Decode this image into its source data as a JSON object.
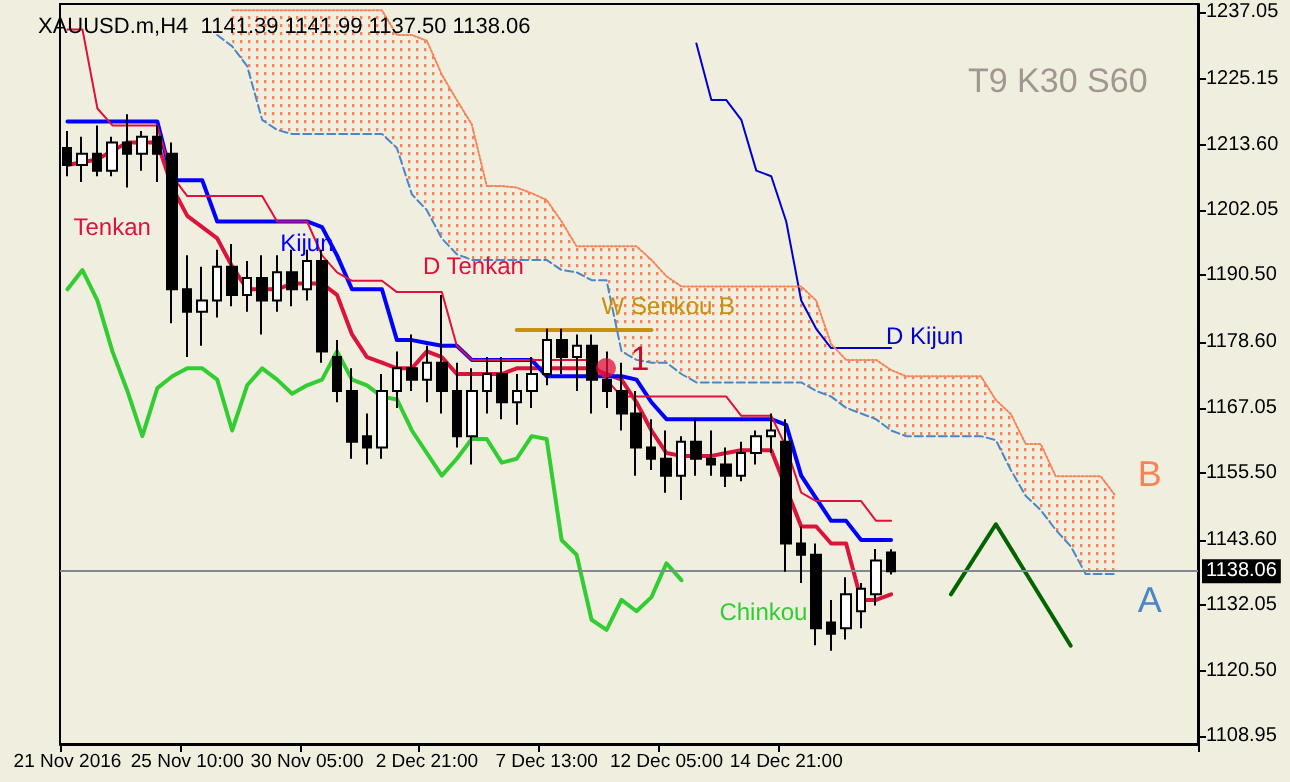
{
  "chart_data": {
    "type": "candlestick",
    "title": "XAUUSD.m,H4  1141.39 1141.99 1137.50 1138.06",
    "categories": [
      "21 Nov 2016",
      null,
      null,
      null,
      null,
      null,
      null,
      null,
      "25 Nov 10:00",
      null,
      null,
      null,
      null,
      null,
      null,
      null,
      "30 Nov 05:00",
      null,
      null,
      null,
      null,
      null,
      null,
      null,
      "2 Dec 21:00",
      null,
      null,
      null,
      null,
      null,
      null,
      null,
      "7 Dec 13:00",
      null,
      null,
      null,
      null,
      null,
      null,
      null,
      "12 Dec 05:00",
      null,
      null,
      null,
      null,
      null,
      null,
      null,
      "14 Dec 21:00",
      null,
      null,
      null,
      null,
      null,
      null,
      null,
      null,
      null,
      null,
      null,
      null,
      null,
      null,
      null,
      null,
      null,
      null,
      null,
      null,
      null,
      null,
      null,
      null,
      null,
      null,
      null
    ],
    "ohlc": [
      [
        1213,
        1216,
        1208,
        1210
      ],
      [
        1210,
        1215,
        1207,
        1212
      ],
      [
        1212,
        1217,
        1208,
        1209
      ],
      [
        1209,
        1215,
        1208,
        1214
      ],
      [
        1214,
        1219,
        1206,
        1212
      ],
      [
        1212,
        1216,
        1209,
        1215
      ],
      [
        1215,
        1217,
        1207,
        1212
      ],
      [
        1212,
        1214,
        1182,
        1188
      ],
      [
        1188,
        1194,
        1176,
        1184
      ],
      [
        1184,
        1192,
        1178,
        1186
      ],
      [
        1186,
        1195,
        1183,
        1192
      ],
      [
        1192,
        1196,
        1185,
        1187
      ],
      [
        1187,
        1193,
        1184,
        1190
      ],
      [
        1190,
        1194,
        1180,
        1186
      ],
      [
        1186,
        1194,
        1184,
        1191
      ],
      [
        1191,
        1195,
        1185,
        1188
      ],
      [
        1188,
        1195,
        1186,
        1193
      ],
      [
        1193,
        1195,
        1175,
        1177
      ],
      [
        1176,
        1179,
        1168,
        1170
      ],
      [
        1170,
        1174,
        1158,
        1161
      ],
      [
        1162,
        1166,
        1157,
        1160
      ],
      [
        1160,
        1173,
        1158,
        1170
      ],
      [
        1170,
        1177,
        1167,
        1174
      ],
      [
        1174,
        1180,
        1170,
        1172
      ],
      [
        1172,
        1178,
        1168,
        1175
      ],
      [
        1175,
        1187,
        1166,
        1170
      ],
      [
        1170,
        1175,
        1160,
        1162
      ],
      [
        1162,
        1174,
        1157,
        1170
      ],
      [
        1170,
        1176,
        1166,
        1173
      ],
      [
        1173,
        1176,
        1165,
        1168
      ],
      [
        1168,
        1173,
        1164,
        1170
      ],
      [
        1170,
        1176,
        1167,
        1173
      ],
      [
        1173,
        1181,
        1171,
        1179
      ],
      [
        1179,
        1181,
        1173,
        1176
      ],
      [
        1176,
        1180,
        1170,
        1178
      ],
      [
        1178,
        1180,
        1166,
        1172
      ],
      [
        1172,
        1177,
        1167,
        1170
      ],
      [
        1170,
        1175,
        1163,
        1166
      ],
      [
        1166,
        1170,
        1155,
        1160
      ],
      [
        1160,
        1165,
        1156,
        1158
      ],
      [
        1158,
        1163,
        1152,
        1155
      ],
      [
        1155,
        1162,
        1150.7,
        1161
      ],
      [
        1161,
        1165,
        1155,
        1158
      ],
      [
        1158,
        1163,
        1155,
        1157
      ],
      [
        1157,
        1160,
        1153,
        1155
      ],
      [
        1155,
        1161,
        1154,
        1159
      ],
      [
        1159,
        1163,
        1157,
        1162
      ],
      [
        1162,
        1166,
        1159,
        1163
      ],
      [
        1161,
        1165,
        1138,
        1143
      ],
      [
        1143,
        1146,
        1136,
        1141
      ],
      [
        1141,
        1143,
        1125,
        1128
      ],
      [
        1129,
        1133,
        1124,
        1127
      ],
      [
        1128,
        1137,
        1126,
        1134
      ],
      [
        1131,
        1136,
        1128,
        1135
      ],
      [
        1134,
        1142,
        1132,
        1140
      ],
      [
        1141.39,
        1141.99,
        1137.5,
        1138.06
      ],
      null,
      null,
      null,
      null,
      null,
      null,
      null,
      null,
      null,
      null,
      null,
      null,
      null,
      null,
      null,
      null,
      null,
      null,
      null,
      null
    ],
    "series": [
      {
        "name": "Tenkan",
        "type": "line",
        "color": "#dc143c",
        "values": [
          1210,
          1210.5,
          1211,
          1212.5,
          1214,
          1214,
          1214,
          1206,
          1201,
          1199,
          1197,
          1192,
          1188,
          1188,
          1188,
          1189,
          1189,
          1189,
          1187,
          1180,
          1176,
          1175,
          1174,
          1174,
          1177,
          1176,
          1173,
          1173,
          1173,
          1173,
          1174,
          1174,
          1174,
          1174,
          1174,
          1174,
          1173,
          1172,
          1168,
          1163,
          1159,
          1158.5,
          1158.5,
          1158.5,
          1159,
          1159.5,
          1159.5,
          1159.5,
          null,
          1146,
          1146,
          1143,
          1143,
          1133,
          1133,
          1134,
          null,
          null,
          null,
          null,
          null,
          null,
          null,
          null,
          null,
          null,
          null,
          null,
          null,
          null,
          null,
          null,
          null,
          null,
          null,
          null
        ]
      },
      {
        "name": "Kijun",
        "type": "line",
        "color": "#0000ff",
        "values": [
          1217.7,
          1217.7,
          1217.7,
          1217.7,
          1217.7,
          1217.7,
          1217.7,
          1207.3,
          1207.3,
          1207.3,
          1200,
          1200,
          1200,
          1200,
          1200,
          1200,
          1200,
          1199,
          1194,
          1188,
          1188,
          1188,
          1179,
          1179,
          1178.5,
          1178,
          1178,
          1175.5,
          1175.5,
          1175.5,
          1175.5,
          1175.5,
          1172.6,
          1172.6,
          1172.6,
          1172.6,
          1172.6,
          1172.6,
          1172,
          1168,
          1165,
          1165,
          1165,
          1165,
          1165,
          1165,
          1165,
          1165,
          1164,
          1155,
          1151,
          1147,
          1147,
          1143.6,
          1143.6,
          1143.6,
          null,
          null,
          null,
          null,
          null,
          null,
          null,
          null,
          null,
          null,
          null,
          null,
          null,
          null,
          null,
          null,
          null,
          null,
          null,
          null
        ]
      },
      {
        "name": "D Tenkan",
        "type": "line",
        "color": "#e0103c",
        "values": [
          1234,
          1234,
          1220,
          1217,
          1217,
          1217,
          1217,
          1208,
          1204.5,
          1204.5,
          1204.5,
          1204.5,
          1204.5,
          1204.5,
          1200,
          1200,
          1200,
          1194,
          1191,
          1189.5,
          1189.5,
          1189.5,
          1187.5,
          1187.5,
          1187.5,
          1187.5,
          1178,
          1175.5,
          1175.5,
          1175.5,
          1175.5,
          1175.5,
          1175.5,
          1175.5,
          1175.5,
          1175.5,
          1172,
          1169,
          1169,
          1169,
          1169,
          1169,
          1169,
          1169,
          1169,
          1165.6,
          1165.6,
          1165.6,
          1160,
          1152,
          1150.5,
          1150.5,
          1150.5,
          1150.5,
          1147,
          1147,
          null,
          null,
          null,
          null,
          null,
          null,
          null,
          null,
          null,
          null,
          null,
          null,
          null,
          null,
          null,
          null,
          null,
          null,
          null,
          null
        ]
      },
      {
        "name": "D Kijun",
        "type": "line",
        "color": "#0000cd",
        "values": [
          null,
          null,
          null,
          null,
          null,
          null,
          null,
          null,
          null,
          null,
          null,
          null,
          null,
          null,
          null,
          null,
          null,
          null,
          null,
          null,
          null,
          null,
          null,
          null,
          null,
          null,
          null,
          null,
          null,
          null,
          null,
          null,
          null,
          null,
          null,
          null,
          null,
          null,
          null,
          null,
          null,
          null,
          1231.5,
          1221.5,
          1221.5,
          1218,
          1209,
          1208,
          1200,
          1186,
          1181,
          1177.6,
          1177.6,
          1177.6,
          1177.6,
          1177.6,
          null,
          null,
          null,
          null,
          null,
          null,
          null,
          null,
          null,
          null,
          null,
          null,
          null,
          null,
          null,
          null,
          null,
          null,
          null,
          null
        ]
      },
      {
        "name": "Chinkou",
        "type": "line",
        "color": "#32cd32",
        "values": [
          1188,
          1191.4,
          1186,
          1177,
          1170,
          1162,
          1170.5,
          1172.6,
          1174,
          1174,
          1172,
          1163,
          1171,
          1174,
          1172,
          1169.5,
          1171,
          1172,
          1177,
          1172,
          1171,
          1169,
          1168.5,
          1163,
          1159,
          1155,
          1158,
          1161.5,
          1161.5,
          1157.3,
          1158,
          1162,
          1161.5,
          1143.6,
          1141,
          1129.5,
          1127.7,
          1133,
          1131,
          1133.5,
          1139.5,
          1136.5,
          null,
          null,
          null,
          null,
          null,
          null,
          null,
          null,
          null,
          null,
          null,
          null,
          null,
          null,
          null,
          null,
          null,
          null,
          null,
          null,
          null,
          null,
          null,
          null,
          null,
          null,
          null,
          null,
          null,
          null,
          null,
          null,
          null,
          null
        ]
      },
      {
        "name": "W Senkou B",
        "type": "line",
        "color": "#c8900f",
        "values": [
          null,
          null,
          null,
          null,
          null,
          null,
          null,
          null,
          null,
          null,
          null,
          null,
          null,
          null,
          null,
          null,
          null,
          null,
          null,
          null,
          null,
          null,
          null,
          null,
          null,
          null,
          null,
          null,
          null,
          null,
          1180.8,
          1180.8,
          1180.8,
          1180.8,
          1180.8,
          1180.8,
          1180.8,
          1180.8,
          1180.8,
          1180.8,
          null,
          null,
          null,
          null,
          null,
          null,
          null,
          null,
          null,
          null,
          null,
          null,
          null,
          null,
          null,
          null,
          null,
          null,
          null,
          null,
          null,
          null,
          null,
          null,
          null,
          null,
          null,
          null,
          null,
          null,
          null,
          null,
          null,
          null,
          null,
          null
        ]
      },
      {
        "name": "A",
        "type": "line",
        "color": "#4a86c8",
        "line_style": "dashed",
        "values": [
          null,
          null,
          null,
          null,
          null,
          null,
          null,
          null,
          null,
          null,
          1233,
          1231,
          1227.5,
          1218,
          1216.2,
          1215.5,
          1215.5,
          1215.5,
          1215.5,
          1215.5,
          1215.5,
          1215.5,
          1213,
          1204.8,
          1202,
          1197,
          1194.2,
          1193.2,
          1193.2,
          1193.2,
          1193.2,
          1193.2,
          1193.2,
          1191.4,
          1191,
          1189.6,
          1189.6,
          1177,
          1175.5,
          1175,
          1175,
          1173,
          1171.5,
          1171.5,
          1171.5,
          1171.5,
          1171.5,
          1171.5,
          1171.5,
          1171.5,
          1170,
          1169,
          1167,
          1166,
          1165,
          1163,
          1162,
          1162,
          1162,
          1162,
          1162,
          1162,
          1161.3,
          1156,
          1151.4,
          1148.9,
          1145.4,
          1142.5,
          1137.6,
          1137.6,
          1137.6,
          null,
          null,
          null,
          null,
          null
        ]
      },
      {
        "name": "B",
        "type": "line",
        "color": "#f4845a",
        "line_style": "dotted",
        "values": [
          null,
          null,
          null,
          null,
          null,
          null,
          null,
          null,
          null,
          null,
          null,
          1237.4,
          1237.4,
          1237.4,
          1237.4,
          1237.4,
          1237.4,
          1237.4,
          1237.4,
          1237.4,
          1237.4,
          1237.4,
          1233,
          1233,
          1232,
          1226,
          1221.5,
          1217.2,
          1206.3,
          1206.3,
          1206,
          1205,
          1203.8,
          1200,
          1195.6,
          1195.6,
          1195.6,
          1195.6,
          1195.6,
          1193.2,
          1190.3,
          1188.5,
          1188.5,
          1188.5,
          1188.5,
          1188.5,
          1188.5,
          1188.5,
          1188.5,
          1188.5,
          1186,
          1178.3,
          1175.5,
          1175.5,
          1175.5,
          1173.7,
          1172.6,
          1172.6,
          1172.6,
          1172.6,
          1172.6,
          1172.6,
          1168.4,
          1165.9,
          1160.6,
          1160.6,
          1154.9,
          1154.9,
          1154.9,
          1154.9,
          1151.4,
          null,
          null,
          null,
          null,
          null
        ]
      },
      {
        "type": "line",
        "color": "#006400",
        "values": [
          null,
          null,
          null,
          null,
          null,
          null,
          null,
          null,
          null,
          null,
          null,
          null,
          null,
          null,
          null,
          null,
          null,
          null,
          null,
          null,
          null,
          null,
          null,
          null,
          null,
          null,
          null,
          null,
          null,
          null,
          null,
          null,
          null,
          null,
          null,
          null,
          null,
          null,
          null,
          null,
          null,
          null,
          null,
          null,
          null,
          null,
          null,
          null,
          null,
          null,
          null,
          null,
          null,
          null,
          null,
          null,
          null,
          null,
          null,
          1134,
          null,
          null,
          1146.4,
          null,
          null,
          null,
          null,
          1124.9,
          null,
          null,
          null,
          null,
          null,
          null,
          null,
          null
        ]
      }
    ],
    "ylim": [
      1107.5,
      1238.5
    ],
    "yticks": [
      1108.95,
      {
        "value": 1120.5,
        "label": "1120.50"
      },
      1132.05,
      {
        "value": 1143.6,
        "label": "1143.60"
      },
      {
        "value": 1155.5,
        "label": "1155.50"
      },
      1167.05,
      {
        "value": 1178.6,
        "label": "1178.60"
      },
      {
        "value": 1190.5,
        "label": "1190.50"
      },
      1202.05,
      {
        "value": 1213.6,
        "label": "1213.60"
      },
      1225.15,
      1237.05
    ],
    "ref_lines": [
      {
        "axis": "y",
        "value": 1138.06,
        "label": "1138.06",
        "color": "#808890"
      }
    ],
    "annotations": [
      {
        "text": "1",
        "y": 1174
      },
      "T9 K30 S60"
    ],
    "marker": "none"
  }
}
